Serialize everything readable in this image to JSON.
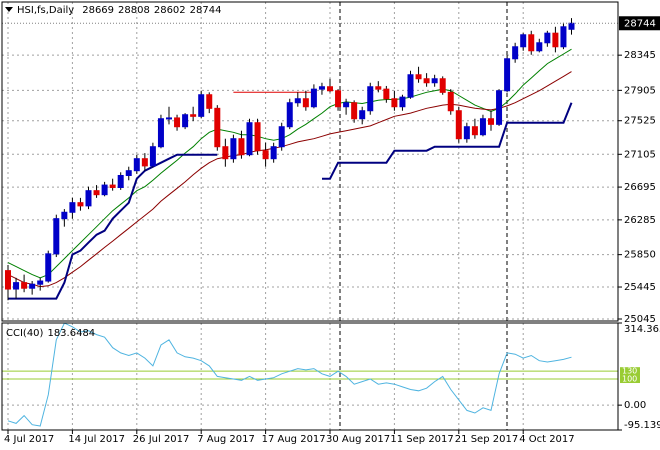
{
  "chart_data": [
    {
      "type": "candlestick",
      "title": "HSI,fs,Daily",
      "categories": [
        "4 Jul 2017",
        null,
        null,
        null,
        null,
        null,
        null,
        null,
        "14 Jul 2017",
        null,
        null,
        null,
        null,
        null,
        null,
        null,
        "26 Jul 2017",
        null,
        null,
        null,
        null,
        null,
        null,
        null,
        "7 Aug 2017",
        null,
        null,
        null,
        null,
        null,
        null,
        null,
        "17 Aug 2017",
        null,
        null,
        null,
        null,
        null,
        null,
        null,
        "30 Aug 2017",
        null,
        null,
        null,
        null,
        null,
        null,
        null,
        "11 Sep 2017",
        null,
        null,
        null,
        null,
        null,
        null,
        null,
        "21 Sep 2017",
        null,
        null,
        null,
        null,
        null,
        null,
        null,
        "4 Oct 2017",
        null,
        null,
        null,
        null,
        null,
        null
      ],
      "open": [
        25650,
        25420,
        25500,
        25430,
        25480,
        25520,
        25860,
        26300,
        26380,
        26500,
        26460,
        26650,
        26600,
        26720,
        26690,
        26840,
        26900,
        27050,
        26960,
        27200,
        27550,
        27560,
        27450,
        27600,
        27580,
        27850,
        27680,
        27200,
        27050,
        27300,
        27100,
        27500,
        27150,
        27050,
        27200,
        27450,
        27750,
        27800,
        27700,
        27920,
        27950,
        27900,
        27700,
        27750,
        27550,
        27650,
        27950,
        27920,
        27800,
        27700,
        27820,
        28100,
        28050,
        28000,
        28050,
        27880,
        27650,
        27300,
        27450,
        27350,
        27550,
        27480,
        27900,
        28300,
        28450,
        28600,
        28400,
        28500,
        28620,
        28450,
        28669
      ],
      "high": [
        25720,
        25560,
        25600,
        25520,
        25560,
        25900,
        26350,
        26420,
        26560,
        26560,
        26700,
        26720,
        26760,
        26800,
        26880,
        26950,
        27100,
        27120,
        27250,
        27600,
        27700,
        27600,
        27620,
        27700,
        27900,
        27880,
        27720,
        27300,
        27350,
        27400,
        27550,
        27550,
        27250,
        27250,
        27500,
        27800,
        27880,
        27900,
        27980,
        28000,
        28050,
        27920,
        27800,
        27780,
        27700,
        28000,
        28020,
        27960,
        27900,
        27850,
        28150,
        28200,
        28120,
        28100,
        28080,
        27920,
        27700,
        27500,
        27550,
        27600,
        27650,
        27920,
        28350,
        28500,
        28620,
        28650,
        28550,
        28650,
        28700,
        28750,
        28808
      ],
      "low": [
        25280,
        25300,
        25380,
        25350,
        25400,
        25500,
        25820,
        26200,
        26300,
        26400,
        26420,
        26560,
        26580,
        26650,
        26660,
        26780,
        26860,
        26900,
        26940,
        27180,
        27480,
        27400,
        27420,
        27520,
        27560,
        27620,
        27150,
        26950,
        27000,
        27050,
        27080,
        27100,
        26950,
        27000,
        27150,
        27420,
        27700,
        27650,
        27680,
        27850,
        27880,
        27650,
        27600,
        27500,
        27480,
        27600,
        27880,
        27750,
        27650,
        27650,
        27800,
        28000,
        27950,
        27950,
        27850,
        27600,
        27250,
        27250,
        27300,
        27330,
        27400,
        27460,
        27880,
        28250,
        28400,
        28350,
        28380,
        28450,
        28380,
        28420,
        28602
      ],
      "close": [
        25420,
        25500,
        25430,
        25480,
        25520,
        25860,
        26300,
        26380,
        26500,
        26460,
        26650,
        26600,
        26720,
        26690,
        26840,
        26900,
        27050,
        26960,
        27200,
        27550,
        27560,
        27450,
        27600,
        27580,
        27850,
        27680,
        27200,
        27050,
        27300,
        27100,
        27500,
        27150,
        27050,
        27200,
        27450,
        27750,
        27800,
        27700,
        27920,
        27950,
        27900,
        27700,
        27750,
        27550,
        27650,
        27950,
        27920,
        27800,
        27700,
        27820,
        28100,
        28050,
        28000,
        28050,
        27880,
        27650,
        27300,
        27450,
        27350,
        27550,
        27480,
        27900,
        28300,
        28450,
        28600,
        28400,
        28500,
        28620,
        28450,
        28700,
        28744
      ],
      "up_color": "#0000c8",
      "down_color": "#e00000",
      "overlays": [
        {
          "color": "#008000",
          "values": [
            25750,
            25700,
            25650,
            25600,
            25560,
            25600,
            25700,
            25800,
            25900,
            26000,
            26100,
            26200,
            26300,
            26400,
            26480,
            26560,
            26650,
            26700,
            26780,
            26870,
            26950,
            27030,
            27120,
            27200,
            27300,
            27380,
            27420,
            27400,
            27380,
            27350,
            27350,
            27330,
            27300,
            27280,
            27300,
            27350,
            27420,
            27480,
            27550,
            27620,
            27700,
            27740,
            27760,
            27750,
            27740,
            27760,
            27780,
            27790,
            27790,
            27800,
            27820,
            27850,
            27880,
            27900,
            27920,
            27900,
            27840,
            27780,
            27720,
            27680,
            27640,
            27680,
            27760,
            27860,
            27970,
            28060,
            28150,
            28240,
            28300,
            28360,
            28420
          ]
        },
        {
          "color": "#8b0000",
          "values": [
            25600,
            25550,
            25500,
            25480,
            25450,
            25460,
            25500,
            25560,
            25630,
            25700,
            25780,
            25860,
            25940,
            26020,
            26100,
            26180,
            26260,
            26340,
            26420,
            26520,
            26600,
            26680,
            26760,
            26850,
            26930,
            27000,
            27050,
            27070,
            27090,
            27100,
            27130,
            27150,
            27160,
            27180,
            27200,
            27230,
            27260,
            27280,
            27300,
            27330,
            27360,
            27380,
            27400,
            27420,
            27440,
            27460,
            27500,
            27540,
            27580,
            27600,
            27620,
            27650,
            27680,
            27700,
            27720,
            27730,
            27720,
            27700,
            27680,
            27670,
            27660,
            27680,
            27710,
            27750,
            27800,
            27850,
            27900,
            27960,
            28020,
            28080,
            28140
          ]
        },
        {
          "color": "#000080",
          "values": [
            25300,
            25300,
            25300,
            25300,
            25300,
            25300,
            25300,
            25500,
            25850,
            25900,
            26000,
            26100,
            26150,
            26300,
            26400,
            26500,
            26800,
            26900,
            26950,
            27000,
            27050,
            27100,
            27100,
            27100,
            27100,
            27100,
            27100,
            null,
            null,
            null,
            null,
            null,
            null,
            null,
            null,
            null,
            null,
            null,
            null,
            26800,
            26800,
            27000,
            27000,
            27000,
            27000,
            27000,
            27000,
            27000,
            27150,
            27150,
            27150,
            27150,
            27150,
            27200,
            27200,
            27200,
            27200,
            27200,
            27200,
            27200,
            27200,
            27200,
            27500,
            27500,
            27500,
            27500,
            27500,
            27500,
            27500,
            27500,
            27750
          ]
        },
        {
          "color": "#e00000",
          "values": [
            null,
            null,
            null,
            null,
            null,
            null,
            null,
            null,
            null,
            null,
            null,
            null,
            null,
            null,
            null,
            null,
            null,
            null,
            null,
            null,
            null,
            null,
            null,
            null,
            null,
            null,
            null,
            null,
            27880,
            27880,
            27880,
            27880,
            27880,
            27880,
            27880,
            27880,
            27880,
            27880,
            27880,
            null,
            null,
            null,
            null,
            null,
            null,
            null,
            null,
            null,
            null,
            null,
            null,
            null,
            null,
            null,
            null,
            null,
            null,
            null,
            null,
            null,
            null,
            null,
            null,
            null,
            null,
            null,
            null,
            null,
            null,
            null,
            null
          ]
        }
      ],
      "ylim": [
        25020,
        29010
      ],
      "yticks": [
        28345,
        27905,
        27525,
        27105,
        26695,
        26285,
        25850,
        25445,
        25045
      ],
      "grid": true
    },
    {
      "type": "line",
      "title": "CCI(40)",
      "values": [
        -60,
        -70,
        -40,
        -75,
        -80,
        40,
        250,
        314,
        300,
        280,
        285,
        270,
        260,
        220,
        200,
        190,
        200,
        180,
        150,
        230,
        250,
        200,
        185,
        180,
        170,
        150,
        110,
        105,
        100,
        95,
        110,
        95,
        100,
        105,
        120,
        130,
        140,
        135,
        140,
        120,
        110,
        130,
        110,
        80,
        90,
        100,
        80,
        85,
        80,
        70,
        60,
        55,
        65,
        90,
        110,
        60,
        20,
        -20,
        -30,
        -10,
        -20,
        120,
        200,
        195,
        180,
        190,
        170,
        165,
        170,
        175,
        183.6484
      ],
      "color": "#4fb4e0",
      "ylim": [
        -95.1391,
        314.3633
      ],
      "yticks": [
        314.3633,
        {
          "value": 0,
          "label": "0.00"
        },
        -95.1391
      ],
      "levels": [
        130,
        100
      ],
      "level_color": "#99cc33",
      "grid": true
    }
  ]
}
